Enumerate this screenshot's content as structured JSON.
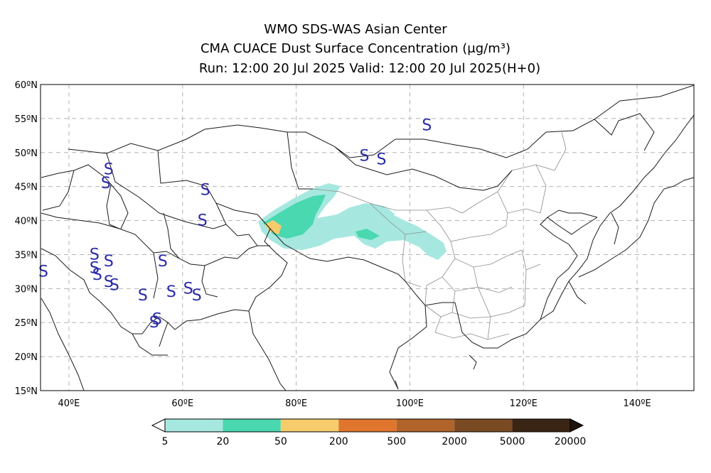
{
  "header": {
    "line1": "WMO SDS-WAS Asian Center",
    "line2": "CMA CUACE Dust Surface Concentration (μg/m³)",
    "line3": "Run: 12:00 20 Jul 2025    Valid: 12:00 20 Jul 2025(H+0)"
  },
  "map": {
    "lon_range": [
      35,
      150
    ],
    "lat_range": [
      15,
      60
    ],
    "x_ticks": [
      "40ºE",
      "60ºE",
      "80ºE",
      "100ºE",
      "120ºE",
      "140ºE"
    ],
    "y_ticks": [
      "15ºN",
      "20ºN",
      "25ºN",
      "30ºN",
      "35ºN",
      "40ºN",
      "45ºN",
      "50ºN",
      "55ºN",
      "60ºN"
    ],
    "gridlines": true,
    "dust_storm_symbol": "S",
    "dust_storm_color": "#2a2aaa",
    "colors": {
      "level_5_20": "#a6e8e0",
      "level_20_50": "#4ad8b0",
      "level_50_200": "#f6cc6c"
    }
  },
  "colorbar": {
    "labels": [
      "5",
      "20",
      "50",
      "200",
      "500",
      "2000",
      "5000",
      "20000"
    ],
    "colors": [
      "#a6e8e0",
      "#4ad8b0",
      "#f6cc6c",
      "#e0762e",
      "#b0642a",
      "#7a4a22",
      "#3a2414"
    ],
    "under_color": "#ffffff",
    "over_color": "#1e140a"
  }
}
